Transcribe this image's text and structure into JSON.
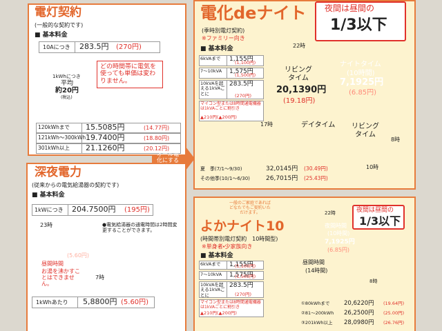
{
  "denki": {
    "title": "電灯契約",
    "subtitle": "(一般的な契約です)",
    "basic_label": "■ 基本料金",
    "basic": [
      "10Aにつき",
      "283.5円",
      "(270円)"
    ],
    "avg": [
      "1kWhにつき",
      "平均",
      "約20円",
      "(税込)"
    ],
    "callout": "どの時間帯に電気を使っても単価は変わりません。",
    "rates": [
      [
        "120kWhまで",
        "15.5085円",
        "(14.77円)"
      ],
      [
        "121kWh〜300kWh",
        "19.7400円",
        "(18.80円)"
      ],
      [
        "301kWh以上",
        "21.1260円",
        "(20.12円)"
      ]
    ]
  },
  "shinya": {
    "title": "深夜電力",
    "subtitle": "(従来からの電気給湯器の契約です)",
    "basic_label": "■ 基本料金",
    "basic": [
      "1kWにつき",
      "204.7500円",
      "(195円)"
    ],
    "pie": {
      "start": "23時",
      "end": "7時",
      "night": [
        "夜間時間",
        "5,8800円",
        "(5.60円)"
      ],
      "day": [
        "昼間時間",
        "お湯を沸かすことはできません。"
      ]
    },
    "note": "●電気給湯器の通電時間は2時間変更することができます。",
    "rate": [
      "1kWhあたり",
      "5,8800円",
      "(5.60円)"
    ]
  },
  "arrow": "オール電化にすると",
  "denka_de_night": {
    "title": "電化deナイト",
    "subtitle": "(季時別電灯契約)",
    "note": "※ファミリー向き",
    "callout": [
      "夜間は昼間の",
      "1/3以下"
    ],
    "basic_label": "■ 基本料金",
    "rows": [
      [
        "6kVAまで",
        "1,155円",
        "(1,100円)"
      ],
      [
        "7〜10kVA",
        "1,575円",
        "(1,500円)"
      ],
      [
        "10kVAを超える1kVAごとに",
        "283.5円",
        "(270円)"
      ]
    ],
    "discount": [
      "マイコン型または8時間通電機器は1kVAごとに割引き",
      "▲210円(▲200円)"
    ],
    "pie": {
      "hours": [
        "22時",
        "17時",
        "8時",
        "10時"
      ],
      "night": [
        "ナイトタイム",
        "(10時間)",
        "7,1925円",
        "(6.85円)"
      ],
      "living": [
        "リビングタイム",
        "20,1390円",
        "(19.18円)"
      ],
      "day": "デイタイム",
      "living2": "リビングタイム"
    },
    "seasons": [
      [
        "夏　季(7/1〜9/30)",
        "32,0145円",
        "(30.49円)"
      ],
      [
        "その他季(10/1〜6/30)",
        "26,7015円",
        "(25.43円)"
      ]
    ]
  },
  "yoka_night": {
    "bubble": "一般のご家庭であればどなたでもご契約いただけます。",
    "title": "よかナイト10",
    "subtitle": "(時間帯別電灯契約　10時間型)",
    "note": "※単身者・少家族向き",
    "callout": [
      "夜間は昼間の",
      "1/3以下"
    ],
    "basic_label": "■ 基本料金",
    "rows": [
      [
        "6kVAまで",
        "1,155円",
        "(1,100円)"
      ],
      [
        "7〜10kVA",
        "1,575円",
        "(1,500円)"
      ],
      [
        "10kVAを超える1kVAごとに",
        "283.5円",
        "(270円)"
      ]
    ],
    "discount": [
      "マイコン型または8時間通電機器は1kVAごとに割引き",
      "▲210円(▲200円)"
    ],
    "pie": {
      "hours": [
        "22時",
        "8時"
      ],
      "night": [
        "夜間時間",
        "(10時間)",
        "7,1925円",
        "(6.85円)"
      ],
      "day": [
        "昼間時間",
        "(14時間)"
      ]
    },
    "tiers": [
      [
        "①80kWhまで",
        "20,6220円",
        "(19.64円)"
      ],
      [
        "②81〜200kWh",
        "26,2500円",
        "(25.00円)"
      ],
      [
        "③201kWh以上",
        "28,0980円",
        "(26.76円)"
      ]
    ]
  }
}
